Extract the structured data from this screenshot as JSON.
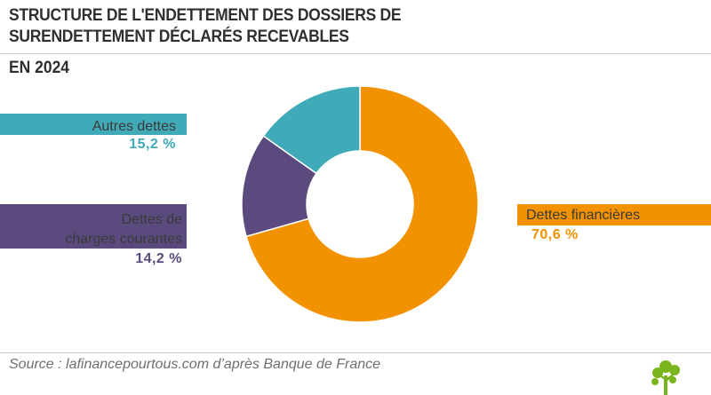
{
  "title": "STRUCTURE DE L'ENDETTEMENT DES DOSSIERS DE SURENDETTEMENT DÉCLARÉS RECEVABLES",
  "subtitle": "EN 2024",
  "source": "Source : lafinancepourtous.com d’après Banque de France",
  "colors": {
    "autres": "#40AAB8",
    "charges": "#5B4A7D",
    "financieres": "#F39200"
  },
  "chart_data": {
    "type": "pie",
    "title": "STRUCTURE DE L'ENDETTEMENT DES DOSSIERS DE SURENDETTEMENT DÉCLARÉS RECEVABLES",
    "subtitle": "EN 2024",
    "slices": [
      {
        "label": "Dettes financières",
        "value": 70.6,
        "value_label": "70,6 %",
        "color": "#F39200"
      },
      {
        "label": "Dettes de charges courantes",
        "value": 14.2,
        "value_label": "14,2 %",
        "color": "#5B4A7D"
      },
      {
        "label": "Autres dettes",
        "value": 15.2,
        "value_label": "15,2 %",
        "color": "#40AAB8"
      }
    ],
    "labels": {
      "autres": {
        "line1": "Autres dettes",
        "pct": "15,2 %"
      },
      "charges": {
        "line1": "Dettes de",
        "line2": "charges courantes",
        "pct": "14,2 %"
      },
      "financieres": {
        "line1": "Dettes financières",
        "pct": "70,6 %"
      }
    }
  }
}
